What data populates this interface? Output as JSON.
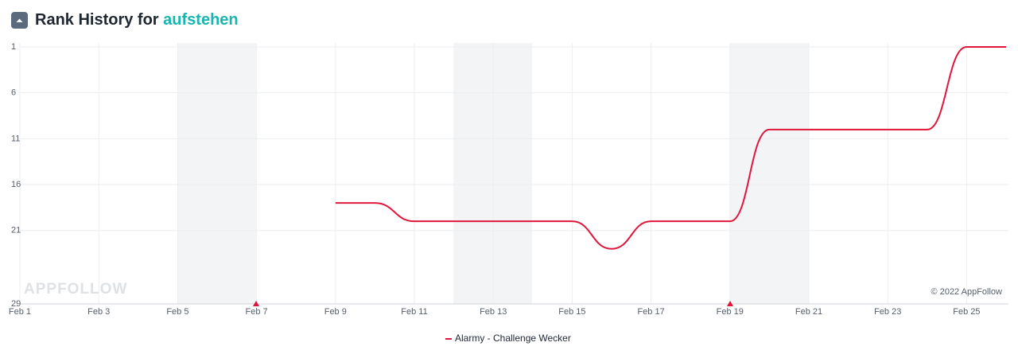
{
  "chart_data": {
    "type": "line",
    "title": "Rank History for",
    "title_highlight": "aufstehen",
    "watermark": "APPFOLLOW",
    "copyright": "© 2022 AppFollow",
    "categories": [
      "Feb 1",
      null,
      "Feb 3",
      null,
      "Feb 5",
      null,
      "Feb 7",
      null,
      "Feb 9",
      null,
      "Feb 11",
      null,
      "Feb 13",
      null,
      "Feb 15",
      null,
      "Feb 17",
      null,
      "Feb 19",
      null,
      "Feb 21",
      null,
      "Feb 23",
      null,
      "Feb 25",
      null
    ],
    "series": [
      {
        "name": "Alarmy - Challenge Wecker",
        "color": "#e0163a",
        "values": [
          null,
          null,
          null,
          null,
          null,
          null,
          null,
          null,
          18,
          18,
          20,
          20,
          20,
          20,
          20,
          23,
          20,
          20,
          20,
          10,
          10,
          10,
          10,
          10,
          1,
          1
        ]
      }
    ],
    "ylim": [
      1,
      29
    ],
    "yticks": [
      1,
      6,
      11,
      16,
      21,
      29
    ],
    "y_reversed": true,
    "grid": true
  }
}
